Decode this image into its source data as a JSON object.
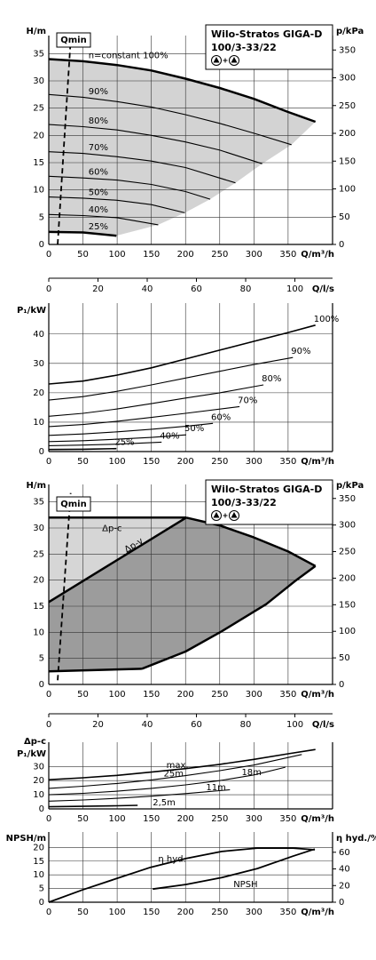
{
  "chart_data": [
    {
      "type": "line",
      "title": "Wilo-Stratos GIGA-D",
      "subtitle": "100/3-33/22",
      "ylabel": "H/m",
      "y2label": "p/kPa",
      "xlabel": "Q/m³/h",
      "xlim": [
        0,
        415
      ],
      "xticks": [
        0,
        50,
        100,
        150,
        200,
        250,
        300,
        350
      ],
      "ylim": [
        0,
        37.5
      ],
      "yticks": [
        0,
        5,
        10,
        15,
        20,
        25,
        30,
        35
      ],
      "y2lim": [
        0,
        368
      ],
      "y2ticks": [
        0,
        50,
        100,
        150,
        200,
        250,
        300,
        350
      ],
      "grid": true,
      "area_color": "#d3d3d3",
      "qmin": {
        "label": "Qmin",
        "x": [
          13,
          32
        ],
        "values": [
          0,
          37.5
        ]
      },
      "series": [
        {
          "name": "n=constant 100%",
          "color": "#000000",
          "width": 2.5,
          "x": [
            0,
            50,
            100,
            150,
            200,
            250,
            300,
            350,
            390
          ],
          "values": [
            34,
            33.6,
            32.9,
            31.9,
            30.4,
            28.7,
            26.7,
            24.3,
            22.5
          ]
        },
        {
          "name": "90%",
          "color": "#000000",
          "width": 1.1,
          "x": [
            0,
            50,
            100,
            150,
            200,
            250,
            300,
            355
          ],
          "values": [
            27.5,
            27,
            26.2,
            25.2,
            23.8,
            22.2,
            20.4,
            18.3
          ]
        },
        {
          "name": "80%",
          "color": "#000000",
          "width": 1.1,
          "x": [
            0,
            50,
            100,
            150,
            200,
            250,
            312
          ],
          "values": [
            22,
            21.6,
            21,
            20,
            18.8,
            17.3,
            14.8
          ]
        },
        {
          "name": "70%",
          "color": "#000000",
          "width": 1.1,
          "x": [
            0,
            50,
            100,
            150,
            200,
            273
          ],
          "values": [
            17,
            16.7,
            16.1,
            15.3,
            14.1,
            11.3
          ]
        },
        {
          "name": "60%",
          "color": "#000000",
          "width": 1.1,
          "x": [
            0,
            50,
            100,
            150,
            200,
            236
          ],
          "values": [
            12.5,
            12.2,
            11.8,
            11,
            9.7,
            8.3
          ]
        },
        {
          "name": "50%",
          "color": "#000000",
          "width": 1.1,
          "x": [
            0,
            50,
            100,
            150,
            199
          ],
          "values": [
            8.7,
            8.5,
            8.1,
            7.3,
            5.8
          ]
        },
        {
          "name": "40%",
          "color": "#000000",
          "width": 1.1,
          "x": [
            0,
            50,
            100,
            160
          ],
          "values": [
            5.5,
            5.3,
            4.9,
            3.6
          ]
        },
        {
          "name": "25%",
          "color": "#000000",
          "width": 2.5,
          "x": [
            0,
            50,
            99
          ],
          "values": [
            2.3,
            2.2,
            1.6
          ]
        }
      ]
    },
    {
      "type": "axis",
      "xlabel": "Q/l/s",
      "xlim": [
        0,
        115.3
      ],
      "xticks": [
        0,
        20,
        40,
        60,
        80,
        100
      ]
    },
    {
      "type": "line",
      "ylabel": "P₁/kW",
      "xlabel": "Q/m³/h",
      "xlim": [
        0,
        415
      ],
      "xticks": [
        0,
        50,
        100,
        150,
        200,
        250,
        300,
        350
      ],
      "ylim": [
        0,
        49
      ],
      "yticks": [
        0,
        10,
        20,
        30,
        40
      ],
      "grid": true,
      "series": [
        {
          "name": "100%",
          "color": "#000000",
          "width": 1.6,
          "x": [
            0,
            50,
            100,
            150,
            200,
            250,
            300,
            350,
            390
          ],
          "values": [
            23,
            24,
            26,
            28.5,
            31.5,
            34.5,
            37.5,
            40.5,
            43
          ]
        },
        {
          "name": "90%",
          "color": "#000000",
          "width": 1.1,
          "x": [
            0,
            50,
            100,
            150,
            200,
            250,
            300,
            357
          ],
          "values": [
            17.5,
            18.7,
            20.5,
            22.7,
            25,
            27.3,
            29.6,
            32
          ]
        },
        {
          "name": "80%",
          "color": "#000000",
          "width": 1.1,
          "x": [
            0,
            50,
            100,
            150,
            200,
            250,
            314
          ],
          "values": [
            12,
            13,
            14.5,
            16.3,
            18.2,
            20,
            22.7
          ]
        },
        {
          "name": "70%",
          "color": "#000000",
          "width": 1.1,
          "x": [
            0,
            50,
            100,
            150,
            200,
            279
          ],
          "values": [
            8.5,
            9.2,
            10.3,
            11.6,
            13,
            15.3
          ]
        },
        {
          "name": "60%",
          "color": "#000000",
          "width": 1.1,
          "x": [
            0,
            50,
            100,
            150,
            200,
            240
          ],
          "values": [
            5.5,
            6,
            6.7,
            7.6,
            8.6,
            9.6
          ]
        },
        {
          "name": "50%",
          "color": "#000000",
          "width": 1.1,
          "x": [
            0,
            50,
            100,
            150,
            201
          ],
          "values": [
            3.4,
            3.7,
            4.2,
            4.8,
            5.7
          ]
        },
        {
          "name": "40%",
          "color": "#000000",
          "width": 1.1,
          "x": [
            0,
            50,
            100,
            165
          ],
          "values": [
            2,
            2.2,
            2.5,
            3.2
          ]
        },
        {
          "name": "25%",
          "color": "#000000",
          "width": 1.6,
          "x": [
            0,
            50,
            99
          ],
          "values": [
            0.7,
            0.8,
            1
          ]
        }
      ]
    },
    {
      "type": "line",
      "title": "Wilo-Stratos GIGA-D",
      "subtitle": "100/3-33/22",
      "ylabel": "H/m",
      "y2label": "p/kPa",
      "xlabel": "Q/m³/h",
      "xlim": [
        0,
        415
      ],
      "xticks": [
        0,
        50,
        100,
        150,
        200,
        250,
        300,
        350
      ],
      "ylim": [
        0,
        37.5
      ],
      "yticks": [
        0,
        5,
        10,
        15,
        20,
        25,
        30,
        35
      ],
      "y2lim": [
        0,
        368
      ],
      "y2ticks": [
        0,
        50,
        100,
        150,
        200,
        250,
        300,
        350
      ],
      "grid": true,
      "area_color": "#d6d6d6",
      "area2_color": "#9c9c9c",
      "qmin": {
        "label": "Qmin",
        "x": [
          13,
          32
        ],
        "values": [
          0.8,
          36.7
        ]
      },
      "series": [
        {
          "name": "Δp-c",
          "color": "#000000",
          "width": 2.5,
          "x": [
            0,
            201
          ],
          "values": [
            32,
            32
          ]
        },
        {
          "color": "#000000",
          "width": 2.5,
          "x": [
            201,
            250,
            300,
            350,
            390
          ],
          "values": [
            32,
            30.5,
            28.2,
            25.5,
            22.7
          ]
        },
        {
          "name": "Δp-v",
          "color": "#000000",
          "width": 2.5,
          "x": [
            0,
            201
          ],
          "values": [
            15.8,
            32
          ]
        },
        {
          "color": "#000000",
          "width": 2.5,
          "x": [
            0,
            136
          ],
          "values": [
            2.5,
            3
          ]
        },
        {
          "color": "#000000",
          "width": 2.5,
          "x": [
            136,
            200,
            253,
            318,
            360,
            390
          ],
          "values": [
            3,
            6.3,
            10.2,
            15.4,
            19.8,
            22.7
          ]
        }
      ]
    },
    {
      "type": "axis",
      "xlabel": "Q/l/s",
      "xlim": [
        0,
        115.3
      ],
      "xticks": [
        0,
        20,
        40,
        60,
        80,
        100
      ]
    },
    {
      "type": "line",
      "mode_label": "Δp-c",
      "ylabel": "P₁/kW",
      "xlabel": "Q/m³/h",
      "xlim": [
        0,
        415
      ],
      "xticks": [
        0,
        50,
        100,
        150,
        200,
        250,
        300,
        350
      ],
      "ylim": [
        0,
        44
      ],
      "yticks": [
        0,
        10,
        20,
        30
      ],
      "grid": true,
      "series": [
        {
          "name": "max.",
          "color": "#000000",
          "width": 1.6,
          "x": [
            0,
            50,
            100,
            150,
            200,
            250,
            300,
            350,
            390
          ],
          "values": [
            20.6,
            22,
            23.7,
            26,
            28.5,
            31.5,
            35,
            39,
            42
          ]
        },
        {
          "name": "25m",
          "color": "#000000",
          "width": 1.1,
          "x": [
            0,
            50,
            100,
            150,
            200,
            250,
            300,
            370
          ],
          "values": [
            14.5,
            16,
            18,
            20.5,
            23.5,
            27,
            31,
            38.5
          ]
        },
        {
          "name": "18m",
          "color": "#000000",
          "width": 1.1,
          "x": [
            0,
            50,
            100,
            150,
            200,
            250,
            300,
            346
          ],
          "values": [
            10,
            11,
            12.5,
            14.5,
            17,
            20,
            24,
            29.5
          ]
        },
        {
          "name": "11m",
          "color": "#000000",
          "width": 1.1,
          "x": [
            0,
            50,
            100,
            150,
            200,
            265
          ],
          "values": [
            5.5,
            6.3,
            7.5,
            9,
            10.8,
            13.5
          ]
        },
        {
          "name": "2,5m",
          "color": "#000000",
          "width": 1.6,
          "x": [
            0,
            50,
            100,
            130
          ],
          "values": [
            1.5,
            1.8,
            2.2,
            2.5
          ]
        }
      ]
    },
    {
      "type": "line",
      "ylabel": "NPSH/m",
      "y2label": "η hyd./%",
      "xlabel": "Q/m³/h",
      "xlim": [
        0,
        415
      ],
      "xticks": [
        0,
        50,
        100,
        150,
        200,
        250,
        300,
        350
      ],
      "ylim": [
        0,
        24
      ],
      "yticks": [
        0,
        5,
        10,
        15,
        20
      ],
      "y2lim": [
        0,
        79
      ],
      "y2ticks": [
        0,
        20,
        40,
        60
      ],
      "grid": true,
      "series": [
        {
          "name": "η hyd.",
          "axis": "y2",
          "color": "#000000",
          "width": 1.8,
          "x": [
            0,
            49,
            99,
            149,
            201,
            253,
            305,
            357,
            389
          ],
          "values": [
            0,
            14.7,
            28.4,
            42,
            52.6,
            61,
            65,
            65,
            63
          ]
        },
        {
          "name": "NPSH",
          "color": "#000000",
          "width": 1.8,
          "x": [
            152,
            201,
            253,
            305,
            357,
            389
          ],
          "values": [
            4.8,
            6.5,
            9,
            12.3,
            16.8,
            19.4
          ]
        }
      ]
    }
  ]
}
